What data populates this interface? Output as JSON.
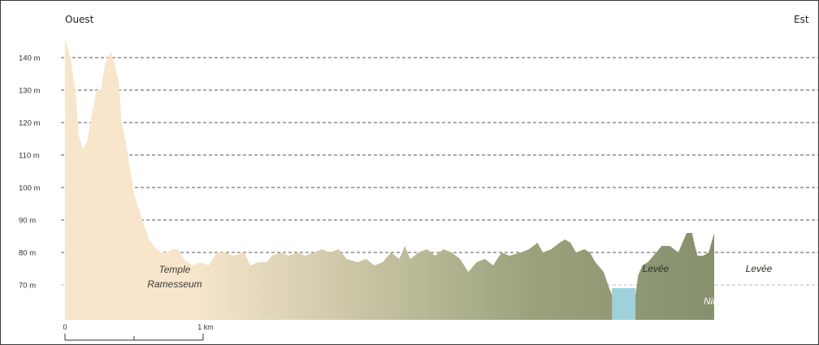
{
  "directions": {
    "west": "Ouest",
    "east": "Est"
  },
  "y_axis": {
    "unit": "m",
    "ticks": [
      {
        "value": 70,
        "label": "70 m",
        "line": false
      },
      {
        "value": 80,
        "label": "80 m",
        "line": true
      },
      {
        "value": 90,
        "label": "90 m",
        "line": true
      },
      {
        "value": 100,
        "label": "100 m",
        "line": true
      },
      {
        "value": 110,
        "label": "110 m",
        "line": true
      },
      {
        "value": 120,
        "label": "120 m",
        "line": true
      },
      {
        "value": 130,
        "label": "130 m",
        "line": true
      },
      {
        "value": 140,
        "label": "140 m",
        "line": true
      }
    ]
  },
  "annotations": {
    "temple_line1": "Temple",
    "temple_line2": "Ramesseum",
    "levee_left": "Levée",
    "levee_right": "Levée",
    "river": "Nil"
  },
  "scale_bar": {
    "start_label": "0",
    "end_label": "1 km"
  },
  "colors": {
    "desert": "#f7e6cc",
    "floodplain": "#7b8665",
    "river": "#9fd1db",
    "gridline": "#555555"
  },
  "profile": {
    "x_unit": "km",
    "elevation": [
      [
        0.0,
        146
      ],
      [
        0.04,
        140
      ],
      [
        0.08,
        128
      ],
      [
        0.1,
        116
      ],
      [
        0.13,
        112
      ],
      [
        0.16,
        114
      ],
      [
        0.2,
        124
      ],
      [
        0.23,
        130
      ],
      [
        0.26,
        130
      ],
      [
        0.29,
        138
      ],
      [
        0.33,
        142
      ],
      [
        0.36,
        138
      ],
      [
        0.39,
        132
      ],
      [
        0.41,
        120
      ],
      [
        0.44,
        114
      ],
      [
        0.47,
        106
      ],
      [
        0.5,
        98
      ],
      [
        0.56,
        90
      ],
      [
        0.61,
        84
      ],
      [
        0.66,
        81
      ],
      [
        0.7,
        80
      ],
      [
        0.74,
        80
      ],
      [
        0.78,
        81
      ],
      [
        0.82,
        81
      ],
      [
        0.86,
        78
      ],
      [
        0.92,
        76
      ],
      [
        0.98,
        77
      ],
      [
        1.04,
        76
      ],
      [
        1.1,
        80
      ],
      [
        1.16,
        80
      ],
      [
        1.22,
        79
      ],
      [
        1.3,
        80
      ],
      [
        1.34,
        76
      ],
      [
        1.4,
        77
      ],
      [
        1.46,
        77
      ],
      [
        1.5,
        79
      ],
      [
        1.56,
        80
      ],
      [
        1.62,
        79
      ],
      [
        1.68,
        80
      ],
      [
        1.74,
        79
      ],
      [
        1.8,
        80
      ],
      [
        1.86,
        81
      ],
      [
        1.92,
        80
      ],
      [
        1.98,
        81
      ],
      [
        2.04,
        78
      ],
      [
        2.12,
        77
      ],
      [
        2.18,
        78
      ],
      [
        2.24,
        76
      ],
      [
        2.3,
        77
      ],
      [
        2.36,
        80
      ],
      [
        2.42,
        78
      ],
      [
        2.46,
        82
      ],
      [
        2.5,
        78
      ],
      [
        2.56,
        80
      ],
      [
        2.62,
        81
      ],
      [
        2.68,
        79
      ],
      [
        2.74,
        81
      ],
      [
        2.8,
        80
      ],
      [
        2.86,
        78
      ],
      [
        2.92,
        74
      ],
      [
        2.98,
        77
      ],
      [
        3.04,
        78
      ],
      [
        3.1,
        76
      ],
      [
        3.16,
        80
      ],
      [
        3.22,
        79
      ],
      [
        3.3,
        80
      ],
      [
        3.36,
        81
      ],
      [
        3.42,
        83
      ],
      [
        3.46,
        80
      ],
      [
        3.52,
        81
      ],
      [
        3.58,
        83
      ],
      [
        3.62,
        84
      ],
      [
        3.66,
        83
      ],
      [
        3.7,
        80
      ],
      [
        3.76,
        81
      ],
      [
        3.8,
        80
      ],
      [
        3.84,
        77
      ],
      [
        3.9,
        74
      ],
      [
        3.94,
        69
      ],
      [
        3.96,
        67
      ],
      [
        4.05,
        67
      ],
      [
        4.13,
        67
      ],
      [
        4.15,
        73
      ],
      [
        4.18,
        76
      ],
      [
        4.22,
        77
      ],
      [
        4.26,
        79
      ],
      [
        4.32,
        82
      ],
      [
        4.38,
        82
      ],
      [
        4.44,
        80
      ],
      [
        4.5,
        86
      ],
      [
        4.54,
        86
      ],
      [
        4.56,
        82
      ],
      [
        4.58,
        79
      ],
      [
        4.62,
        79
      ],
      [
        4.66,
        80
      ],
      [
        4.7,
        86
      ]
    ],
    "river_extent": [
      3.96,
      4.13
    ],
    "river_surface": 69
  }
}
